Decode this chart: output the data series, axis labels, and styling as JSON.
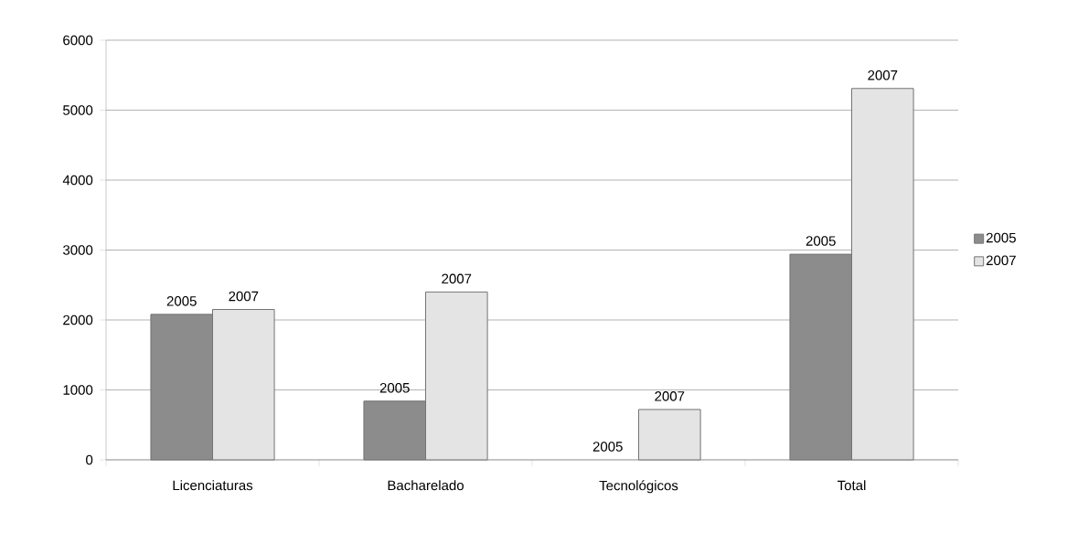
{
  "chart_data": {
    "type": "bar",
    "categories": [
      "Licenciaturas",
      "Bacharelado",
      "Tecnológicos",
      "Total"
    ],
    "series": [
      {
        "name": "2005",
        "color": "#8c8c8c",
        "values": [
          2080,
          840,
          0,
          2940
        ]
      },
      {
        "name": "2007",
        "color": "#e4e4e4",
        "values": [
          2150,
          2400,
          720,
          5310
        ]
      }
    ],
    "annotations": [
      {
        "text": "2005",
        "x": "Licenciaturas",
        "y": 2080
      },
      {
        "text": "2005",
        "x": "Bacharelado",
        "y": 840
      },
      {
        "text": "2005",
        "x": "Tecnológicos",
        "y": 0
      },
      {
        "text": "2005",
        "x": "Total",
        "y": 2940
      },
      {
        "text": "2007",
        "x": "Licenciaturas",
        "y": 2150
      },
      {
        "text": "2007",
        "x": "Bacharelado",
        "y": 2400
      },
      {
        "text": "2007",
        "x": "Tecnológicos",
        "y": 720
      },
      {
        "text": "2007",
        "x": "Total",
        "y": 5310
      }
    ],
    "ylim": [
      0,
      6000
    ],
    "yticks": [
      0,
      1000,
      2000,
      3000,
      4000,
      5000,
      6000
    ],
    "grid": "y",
    "legend": "right"
  }
}
